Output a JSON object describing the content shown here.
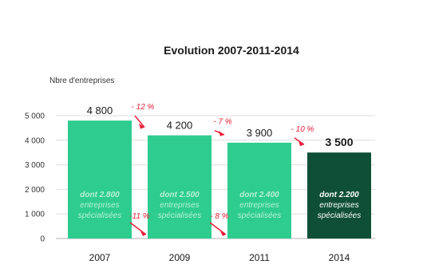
{
  "chart_data": {
    "type": "bar",
    "title": "Evolution 2007-2011-2014",
    "ylabel": "Nbre d'entreprises",
    "xlabel": "",
    "ylim": [
      0,
      5000
    ],
    "yticks": [
      "0",
      "1 000",
      "2 000",
      "3 000",
      "4 000",
      "5 000"
    ],
    "ytick_values": [
      0,
      1000,
      2000,
      3000,
      4000,
      5000
    ],
    "grid": true,
    "categories": [
      "2007",
      "2009",
      "2011",
      "2014"
    ],
    "values": [
      4800,
      4200,
      3900,
      3500
    ],
    "value_labels": [
      "4 800",
      "4 200",
      "3 900",
      "3 500"
    ],
    "bar_colors": [
      "#2ecc8f",
      "#2ecc8f",
      "#2ecc8f",
      "#0f4f38"
    ],
    "annotation_color": "#e8213a",
    "top_changes": [
      "- 12 %",
      "- 7 %",
      "- 10 %"
    ],
    "bottom_changes": [
      "-11 %",
      "- 8 %"
    ],
    "bar_inner_text": [
      [
        "dont 2.800",
        "entreprises",
        "spécialisées"
      ],
      [
        "dont 2.500",
        "entreprises",
        "spécialisées"
      ],
      [
        "dont 2.400",
        "entreprises",
        "spécialisées"
      ],
      [
        "dont 2.200",
        "entreprises",
        "spécialisées"
      ]
    ]
  }
}
